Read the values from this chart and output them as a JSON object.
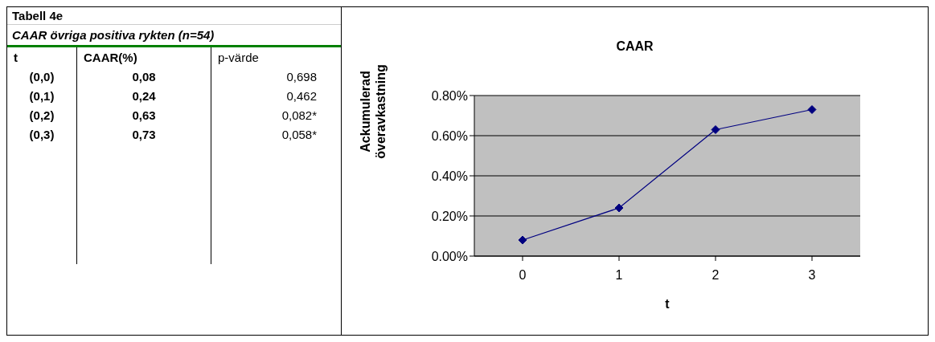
{
  "chart_data": {
    "type": "line",
    "title": "CAAR",
    "xlabel": "t",
    "ylabel": "Ackumulerad överavkastning",
    "categories": [
      "0",
      "1",
      "2",
      "3"
    ],
    "series": [
      {
        "color": "#000080",
        "values": [
          0.08,
          0.24,
          0.63,
          0.73
        ]
      }
    ],
    "ylim": [
      0,
      0.8
    ],
    "yticks": [
      {
        "value": 0,
        "label": "0.00%"
      },
      {
        "value": 0.2,
        "label": "0.20%"
      },
      {
        "value": 0.4,
        "label": "0.40%"
      },
      {
        "value": 0.6,
        "label": "0.60%"
      },
      {
        "value": 0.8,
        "label": "0.80%"
      }
    ],
    "grid": "y",
    "marker": "diamond",
    "line_style": "solid",
    "annotations": [
      "Tabell 4e",
      "CAAR övriga positiva rykten  (n=54)",
      "t",
      "CAAR(%)",
      "p-värde",
      "(0,0)",
      "(0,1)",
      "(0,2)",
      "(0,3)",
      "0,08",
      "0,24",
      "0,63",
      "0,73",
      "0,698",
      "0,462",
      "0,082*",
      "0,058*"
    ]
  }
}
